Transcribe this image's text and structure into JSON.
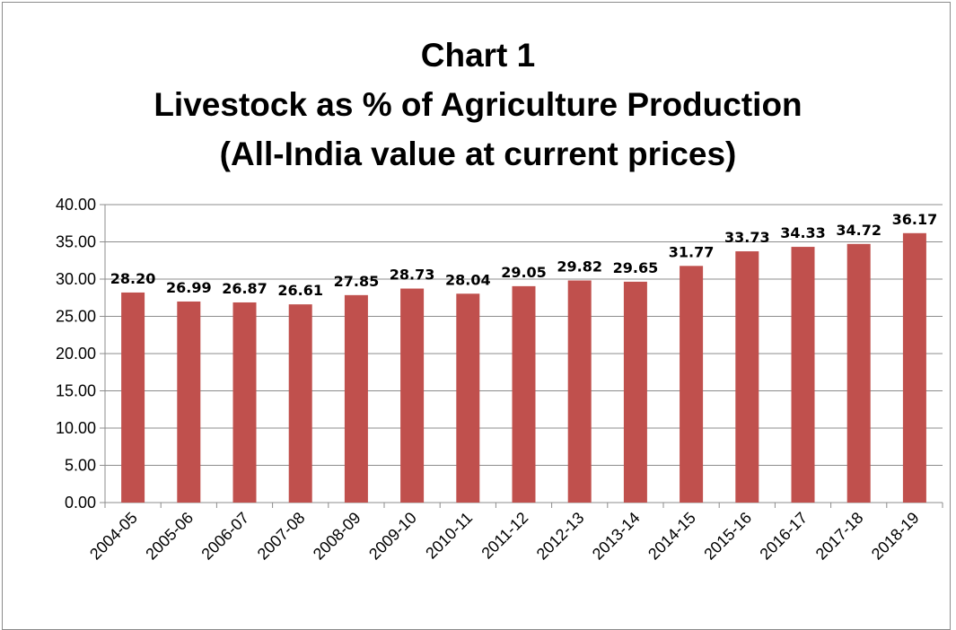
{
  "chart_data": {
    "type": "bar",
    "title_lines": [
      "Chart 1",
      "Livestock as % of Agriculture Production",
      "(All-India value at current prices)"
    ],
    "categories": [
      "2004-05",
      "2005-06",
      "2006-07",
      "2007-08",
      "2008-09",
      "2009-10",
      "2010-11",
      "2011-12",
      "2012-13",
      "2013-14",
      "2014-15",
      "2015-16",
      "2016-17",
      "2017-18",
      "2018-19"
    ],
    "values": [
      28.2,
      26.99,
      26.87,
      26.61,
      27.85,
      28.73,
      28.04,
      29.05,
      29.82,
      29.65,
      31.77,
      33.73,
      34.33,
      34.72,
      36.17
    ],
    "value_labels": [
      "28.20",
      "26.99",
      "26.87",
      "26.61",
      "27.85",
      "28.73",
      "28.04",
      "29.05",
      "29.82",
      "29.65",
      "31.77",
      "33.73",
      "34.33",
      "34.72",
      "36.17"
    ],
    "y_ticks": [
      "0.00",
      "5.00",
      "10.00",
      "15.00",
      "20.00",
      "25.00",
      "30.00",
      "35.00",
      "40.00"
    ],
    "ylim": [
      0,
      40
    ],
    "xlabel": "",
    "ylabel": "",
    "grid": true,
    "legend": "none",
    "bar_color": "#c0504d"
  }
}
